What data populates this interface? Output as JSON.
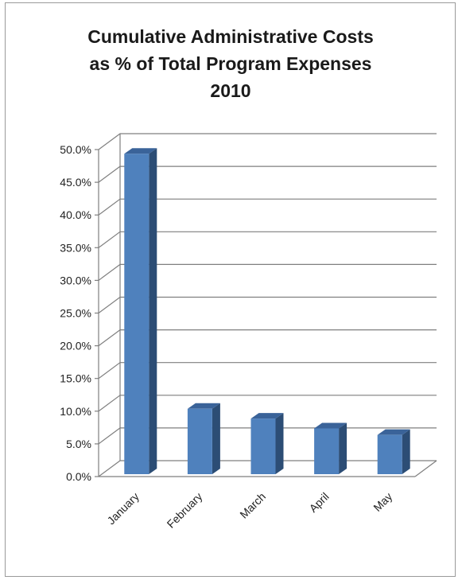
{
  "chart_data": {
    "type": "bar",
    "title_lines": [
      "Cumulative Administrative Costs",
      "as % of Total Program Expenses",
      "2010"
    ],
    "categories": [
      "January",
      "February",
      "March",
      "April",
      "May"
    ],
    "values": [
      49.0,
      10.0,
      8.5,
      7.0,
      6.0
    ],
    "value_format": "percent",
    "xlabel": "",
    "ylabel": "",
    "ylim": [
      0,
      50
    ],
    "y_ticks": [
      "0.0%",
      "5.0%",
      "10.0%",
      "15.0%",
      "20.0%",
      "25.0%",
      "30.0%",
      "35.0%",
      "40.0%",
      "45.0%",
      "50.0%"
    ],
    "grid": true,
    "legend": "none",
    "style": "3d-column",
    "colors": {
      "bar_front": "#4f81bd",
      "bar_side": "#2c4d75",
      "bar_top": "#3a6399",
      "grid": "#7f7f7f"
    }
  }
}
